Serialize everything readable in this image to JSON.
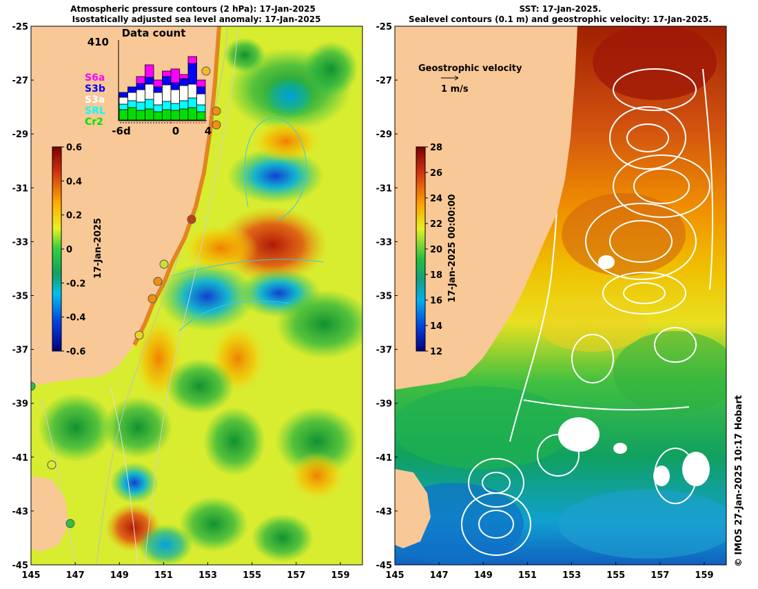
{
  "left_panel": {
    "title_line1": "Atmospheric pressure contours (2 hPa): 17-Jan-2025",
    "title_line2": "Isostatically adjusted sea level anomaly: 17-Jan-2025",
    "colorbar": {
      "label": "17-Jan-2025",
      "ticks": [
        "0.6",
        "0.4",
        "0.2",
        "0",
        "-0.2",
        "-0.4",
        "-0.6"
      ],
      "range": [
        -0.6,
        0.6
      ]
    },
    "data_count": {
      "title": "Data count",
      "ymax_label": "410",
      "x_labels": [
        "-6d",
        "0",
        "4"
      ],
      "legend": [
        {
          "name": "S6a",
          "color": "#ff00ff"
        },
        {
          "name": "S3b",
          "color": "#0000ff"
        },
        {
          "name": "S3a",
          "color": "#ffffff"
        },
        {
          "name": "SRL",
          "color": "#00ffff"
        },
        {
          "name": "Cr2",
          "color": "#00e000"
        }
      ]
    }
  },
  "right_panel": {
    "title_line1": "SST: 17-Jan-2025.",
    "title_line2": "Sealevel contours (0.1 m) and geostrophic velocity: 17-Jan-2025.",
    "velocity_legend_title": "Geostrophic velocity",
    "velocity_legend_unit": "1 m/s",
    "colorbar": {
      "label": "17-Jan-2025 00:00:00",
      "ticks": [
        "28",
        "26",
        "24",
        "22",
        "20",
        "18",
        "16",
        "14",
        "12"
      ],
      "range": [
        12,
        28
      ]
    }
  },
  "axes": {
    "y_ticks": [
      "-25",
      "-27",
      "-29",
      "-31",
      "-33",
      "-35",
      "-37",
      "-39",
      "-41",
      "-43",
      "-45"
    ],
    "x_ticks": [
      "145",
      "147",
      "149",
      "151",
      "153",
      "155",
      "157",
      "159"
    ]
  },
  "credit": "© IMOS 27-Jan-2025 10:17 Hobart",
  "colors": {
    "land": "#f8c896",
    "sla_positive": "#c03010",
    "sla_negative": "#0030c0",
    "sst_warm": "#b02000",
    "sst_cool": "#1060c0"
  }
}
